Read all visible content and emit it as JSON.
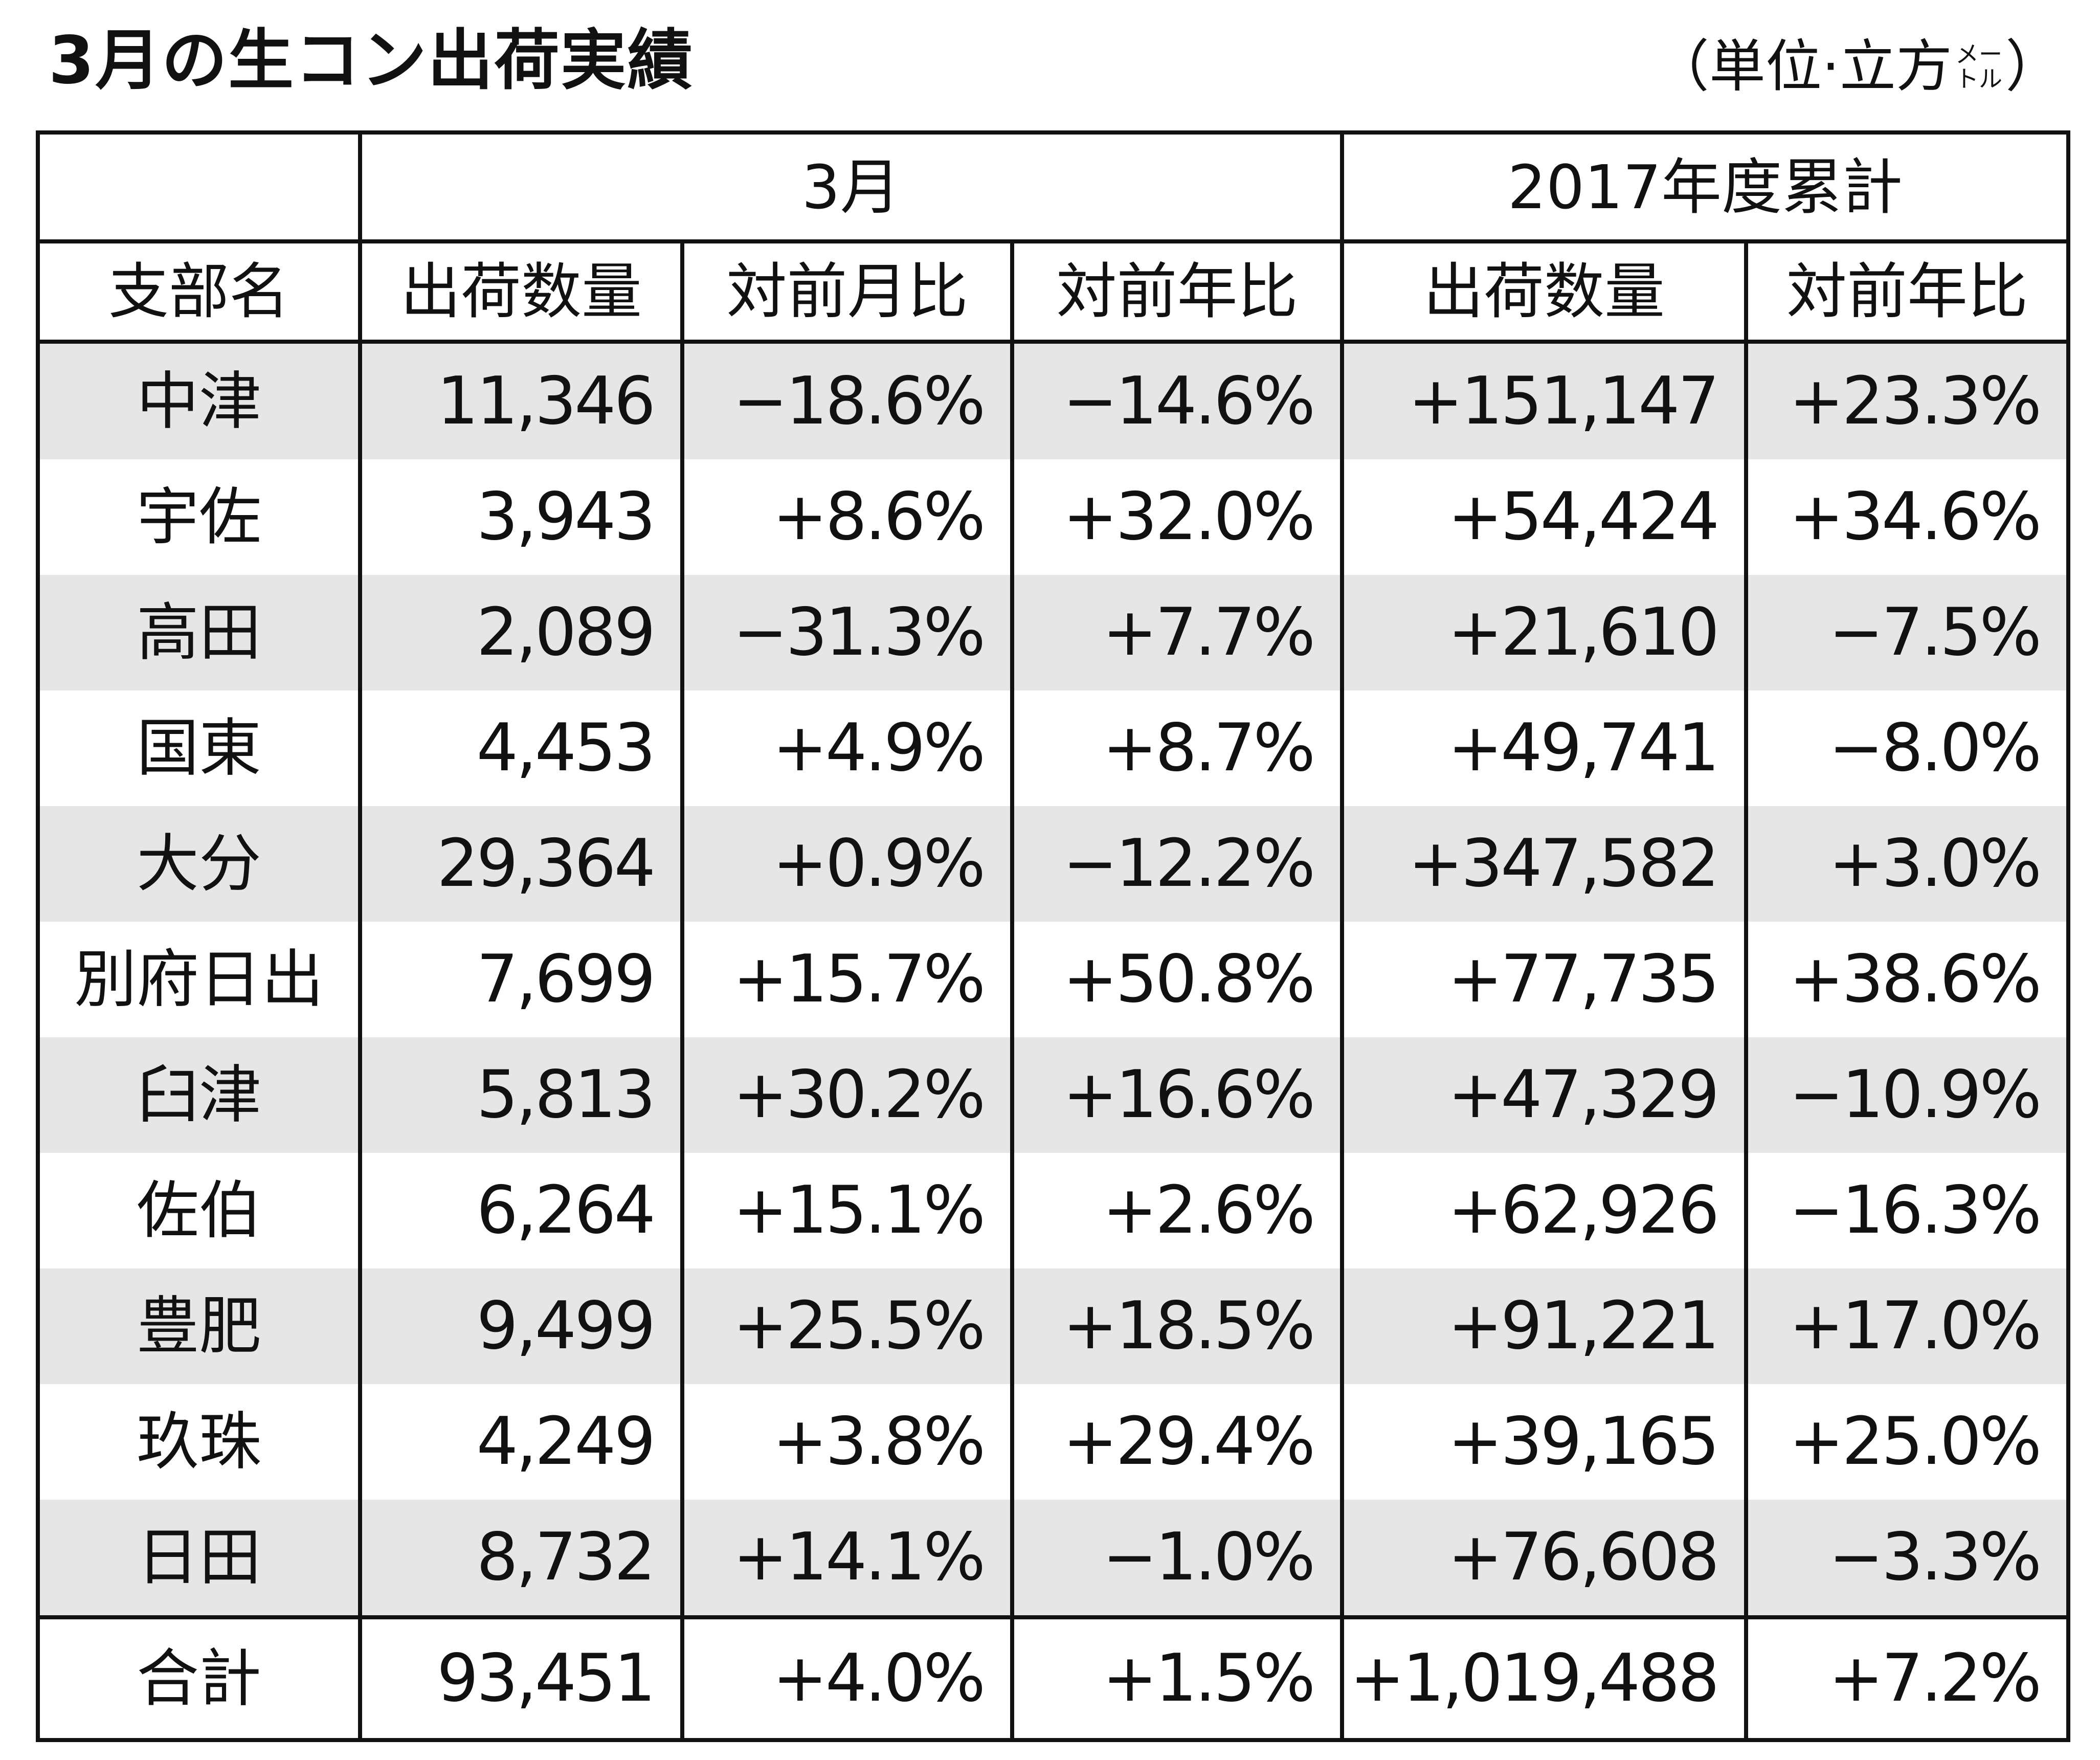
{
  "title": "3月の生コン出荷実績",
  "unit": {
    "open": "（単位·立方",
    "small_top": "メー",
    "small_bottom": "トル",
    "close": "）"
  },
  "table": {
    "group_headers": {
      "blank": "",
      "month": "3月",
      "cumulative": "2017年度累計"
    },
    "column_headers": [
      "支部名",
      "出荷数量",
      "対前月比",
      "対前年比",
      "出荷数量",
      "対前年比"
    ],
    "rows": [
      {
        "branch": "中津",
        "m_qty": "11,346",
        "m_mom": "−18.6%",
        "m_yoy": "−14.6%",
        "c_qty": "+151,147",
        "c_yoy": "+23.3%"
      },
      {
        "branch": "宇佐",
        "m_qty": "3,943",
        "m_mom": "+8.6%",
        "m_yoy": "+32.0%",
        "c_qty": "+54,424",
        "c_yoy": "+34.6%"
      },
      {
        "branch": "高田",
        "m_qty": "2,089",
        "m_mom": "−31.3%",
        "m_yoy": "+7.7%",
        "c_qty": "+21,610",
        "c_yoy": "−7.5%"
      },
      {
        "branch": "国東",
        "m_qty": "4,453",
        "m_mom": "+4.9%",
        "m_yoy": "+8.7%",
        "c_qty": "+49,741",
        "c_yoy": "−8.0%"
      },
      {
        "branch": "大分",
        "m_qty": "29,364",
        "m_mom": "+0.9%",
        "m_yoy": "−12.2%",
        "c_qty": "+347,582",
        "c_yoy": "+3.0%"
      },
      {
        "branch": "別府日出",
        "m_qty": "7,699",
        "m_mom": "+15.7%",
        "m_yoy": "+50.8%",
        "c_qty": "+77,735",
        "c_yoy": "+38.6%"
      },
      {
        "branch": "臼津",
        "m_qty": "5,813",
        "m_mom": "+30.2%",
        "m_yoy": "+16.6%",
        "c_qty": "+47,329",
        "c_yoy": "−10.9%"
      },
      {
        "branch": "佐伯",
        "m_qty": "6,264",
        "m_mom": "+15.1%",
        "m_yoy": "+2.6%",
        "c_qty": "+62,926",
        "c_yoy": "−16.3%"
      },
      {
        "branch": "豊肥",
        "m_qty": "9,499",
        "m_mom": "+25.5%",
        "m_yoy": "+18.5%",
        "c_qty": "+91,221",
        "c_yoy": "+17.0%"
      },
      {
        "branch": "玖珠",
        "m_qty": "4,249",
        "m_mom": "+3.8%",
        "m_yoy": "+29.4%",
        "c_qty": "+39,165",
        "c_yoy": "+25.0%"
      },
      {
        "branch": "日田",
        "m_qty": "8,732",
        "m_mom": "+14.1%",
        "m_yoy": "−1.0%",
        "c_qty": "+76,608",
        "c_yoy": "−3.3%"
      }
    ],
    "total": {
      "branch": "合計",
      "m_qty": "93,451",
      "m_mom": "+4.0%",
      "m_yoy": "+1.5%",
      "c_qty": "+1,019,488",
      "c_yoy": "+7.2%"
    }
  }
}
